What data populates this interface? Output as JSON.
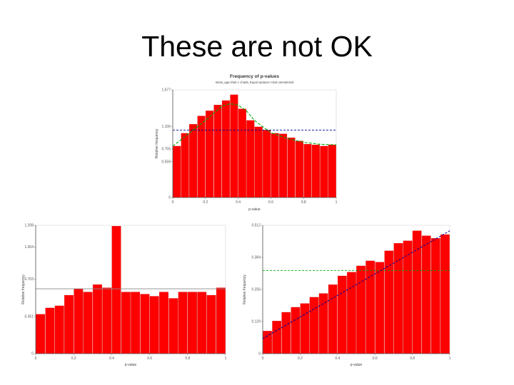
{
  "slide": {
    "title": "These are not OK"
  },
  "chart_data": [
    {
      "id": "top",
      "type": "bar",
      "title": "Frequency of p-values",
      "subtitle": "strain_age:cha5 < cha25, Equal variance t-test unrestricted",
      "xlabel": "p-value",
      "ylabel": "Relative frequency",
      "xlim": [
        0,
        1
      ],
      "ylim": [
        0,
        1.677
      ],
      "yticks": [
        0,
        0.559,
        0.755,
        1.106,
        1.677
      ],
      "ytick_labels": [
        "0",
        "0.559",
        "0.755",
        "1.106",
        "1.677"
      ],
      "xticks": [
        0,
        0.2,
        0.4,
        0.6,
        0.8,
        1
      ],
      "xtick_labels": [
        "0",
        "0.2",
        "0.4",
        "0.6",
        "0.8",
        "1"
      ],
      "bar_color": "#ff0000",
      "values": [
        0.8,
        1.0,
        1.14,
        1.27,
        1.35,
        1.44,
        1.51,
        1.6,
        1.38,
        1.2,
        1.1,
        1.05,
        1.0,
        0.99,
        0.93,
        0.88,
        0.83,
        0.82,
        0.8,
        0.82
      ],
      "overlays": [
        {
          "kind": "hline",
          "y": 1.05,
          "color": "#000099",
          "dash": "3,2"
        },
        {
          "kind": "curve",
          "color": "#00aa00",
          "dash": "4,2",
          "x": [
            0,
            0.1,
            0.2,
            0.3,
            0.35,
            0.4,
            0.45,
            0.5,
            0.6,
            0.7,
            0.8,
            0.9,
            1.0
          ],
          "y": [
            0.8,
            1.0,
            1.2,
            1.42,
            1.46,
            1.44,
            1.35,
            1.2,
            1.01,
            0.92,
            0.86,
            0.83,
            0.82
          ]
        }
      ]
    },
    {
      "id": "left",
      "type": "bar",
      "title": "",
      "xlabel": "p-value",
      "ylabel": "Relative frequency",
      "xlim": [
        0,
        1
      ],
      "ylim": [
        0,
        1.208
      ],
      "yticks": [
        0,
        0.351,
        0.703,
        1.004,
        1.208
      ],
      "ytick_labels": [
        "0",
        "0.351",
        "0.703",
        "1.004",
        "1.208"
      ],
      "xticks": [
        0,
        0.2,
        0.4,
        0.6,
        0.8,
        1
      ],
      "xtick_labels": [
        "0",
        "0.2",
        "0.4",
        "0.6",
        "0.8",
        "1"
      ],
      "bar_color": "#ff0000",
      "values": [
        0.37,
        0.43,
        0.45,
        0.55,
        0.61,
        0.58,
        0.65,
        0.62,
        1.2,
        0.58,
        0.58,
        0.56,
        0.54,
        0.58,
        0.52,
        0.58,
        0.58,
        0.58,
        0.55,
        0.62
      ],
      "overlays": [
        {
          "kind": "hline",
          "y": 0.61,
          "color": "#888888",
          "dash": ""
        }
      ]
    },
    {
      "id": "right",
      "type": "bar",
      "title": "",
      "xlabel": "p-value",
      "ylabel": "Relative frequency",
      "xlim": [
        0,
        1
      ],
      "ylim": [
        0,
        0.512
      ],
      "yticks": [
        0,
        0.129,
        0.256,
        0.384,
        0.512
      ],
      "ytick_labels": [
        "0",
        "0.129",
        "0.256",
        "0.384",
        "0.512"
      ],
      "xticks": [
        0,
        0.2,
        0.4,
        0.6,
        0.8,
        1
      ],
      "xtick_labels": [
        "0",
        "0.2",
        "0.4",
        "0.6",
        "0.8",
        "1"
      ],
      "bar_color": "#ff0000",
      "values": [
        0.09,
        0.13,
        0.165,
        0.185,
        0.2,
        0.225,
        0.24,
        0.275,
        0.31,
        0.325,
        0.35,
        0.37,
        0.365,
        0.41,
        0.44,
        0.45,
        0.49,
        0.47,
        0.46,
        0.475
      ],
      "overlays": [
        {
          "kind": "hline",
          "y": 0.332,
          "color": "#00aa00",
          "dash": "3,2"
        },
        {
          "kind": "line",
          "color": "#000099",
          "dash": "3,2",
          "x": [
            0,
            1
          ],
          "y": [
            0.06,
            0.49
          ]
        }
      ]
    }
  ]
}
